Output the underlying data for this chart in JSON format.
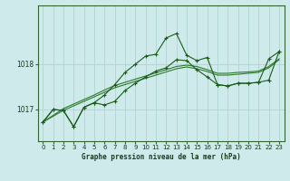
{
  "title": "Graphe pression niveau de la mer (hPa)",
  "bg_color": "#ceeaea",
  "grid_color": "#aed4d4",
  "line_color_dark": "#1a5c1a",
  "line_color_mid": "#2d7a2d",
  "xlim": [
    -0.5,
    23.5
  ],
  "ylim": [
    1016.3,
    1019.3
  ],
  "yticks": [
    1017,
    1018
  ],
  "xticks": [
    0,
    1,
    2,
    3,
    4,
    5,
    6,
    7,
    8,
    9,
    10,
    11,
    12,
    13,
    14,
    15,
    16,
    17,
    18,
    19,
    20,
    21,
    22,
    23
  ],
  "series1": [
    1016.72,
    1017.0,
    1016.98,
    1016.62,
    1017.05,
    1017.15,
    1017.32,
    1017.55,
    1017.82,
    1018.0,
    1018.18,
    1018.22,
    1018.58,
    1018.68,
    1018.2,
    1018.08,
    1018.15,
    1017.55,
    1017.52,
    1017.58,
    1017.58,
    1017.6,
    1018.12,
    1018.28
  ],
  "series2": [
    1016.72,
    1017.0,
    1016.98,
    1016.62,
    1017.05,
    1017.15,
    1017.1,
    1017.18,
    1017.42,
    1017.58,
    1017.72,
    1017.85,
    1017.92,
    1018.1,
    1018.08,
    1017.88,
    1017.72,
    1017.55,
    1017.52,
    1017.58,
    1017.58,
    1017.6,
    1017.65,
    1018.28
  ],
  "series_smooth1": [
    1016.72,
    1016.87,
    1017.02,
    1017.12,
    1017.22,
    1017.32,
    1017.43,
    1017.53,
    1017.6,
    1017.67,
    1017.74,
    1017.81,
    1017.88,
    1017.95,
    1017.98,
    1017.95,
    1017.88,
    1017.8,
    1017.8,
    1017.82,
    1017.83,
    1017.85,
    1017.95,
    1018.12
  ],
  "series_smooth2": [
    1016.72,
    1016.85,
    1016.98,
    1017.08,
    1017.18,
    1017.28,
    1017.38,
    1017.48,
    1017.55,
    1017.62,
    1017.69,
    1017.76,
    1017.83,
    1017.9,
    1017.94,
    1017.9,
    1017.84,
    1017.76,
    1017.76,
    1017.78,
    1017.8,
    1017.82,
    1017.92,
    1018.1
  ]
}
